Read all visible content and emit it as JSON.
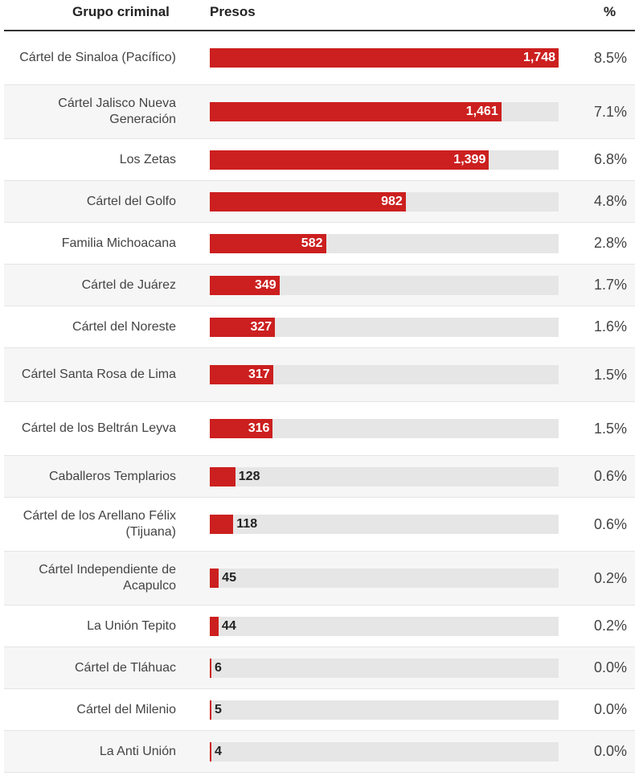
{
  "header": {
    "group": "Grupo criminal",
    "presos": "Presos",
    "pct": "%"
  },
  "colors": {
    "bar": "#cc1f1f",
    "track": "#e6e6e6",
    "alt_row": "#f6f6f6"
  },
  "chart_data": {
    "type": "bar",
    "orientation": "horizontal",
    "xlim": [
      0,
      1748
    ],
    "categories": [
      "Cártel de Sinaloa (Pacífico)",
      "Cártel Jalisco Nueva Generación",
      "Los Zetas",
      "Cártel del Golfo",
      "Familia Michoacana",
      "Cártel de Juárez",
      "Cártel del Noreste",
      "Cártel Santa Rosa de Lima",
      "Cártel de los Beltrán Leyva",
      "Caballeros Templarios",
      "Cártel de los Arellano Félix (Tijuana)",
      "Cártel Independiente de Acapulco",
      "La Unión Tepito",
      "Cártel de Tláhuac",
      "Cártel del Milenio",
      "La Anti Unión"
    ],
    "values": [
      1748,
      1461,
      1399,
      982,
      582,
      349,
      327,
      317,
      316,
      128,
      118,
      45,
      44,
      6,
      5,
      4
    ],
    "value_labels": [
      "1,748",
      "1,461",
      "1,399",
      "982",
      "582",
      "349",
      "327",
      "317",
      "316",
      "128",
      "118",
      "45",
      "44",
      "6",
      "5",
      "4"
    ],
    "percent_labels": [
      "8.5%",
      "7.1%",
      "6.8%",
      "4.8%",
      "2.8%",
      "1.7%",
      "1.6%",
      "1.5%",
      "1.5%",
      "0.6%",
      "0.6%",
      "0.2%",
      "0.2%",
      "0.0%",
      "0.0%",
      "0.0%"
    ]
  }
}
